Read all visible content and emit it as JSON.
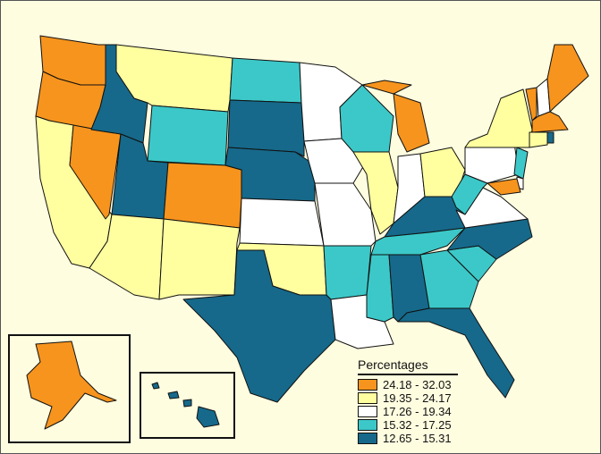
{
  "legend": {
    "title": "Percentages",
    "bins": [
      {
        "label": "24.18 - 32.03",
        "color": "#f7941d"
      },
      {
        "label": "19.35 - 24.17",
        "color": "#ffffa0"
      },
      {
        "label": "17.26 - 19.34",
        "color": "#ffffff"
      },
      {
        "label": "15.32 - 17.25",
        "color": "#3cc8c8"
      },
      {
        "label": "12.65 - 15.31",
        "color": "#16698a"
      }
    ]
  },
  "state_bins": {
    "WA": 0,
    "OR": 0,
    "CA": 1,
    "NV": 0,
    "ID": 4,
    "MT": 1,
    "WY": 3,
    "UT": 4,
    "AZ": 1,
    "CO": 0,
    "NM": 1,
    "ND": 3,
    "SD": 4,
    "NE": 4,
    "KS": 2,
    "OK": 1,
    "TX": 4,
    "MN": 2,
    "IA": 2,
    "MO": 2,
    "AR": 3,
    "LA": 2,
    "WI": 3,
    "IL": 1,
    "MI": 0,
    "IN": 2,
    "OH": 1,
    "KY": 4,
    "TN": 3,
    "MS": 3,
    "AL": 4,
    "GA": 3,
    "FL": 4,
    "SC": 3,
    "NC": 4,
    "VA": 2,
    "WV": 3,
    "PA": 2,
    "NY": 1,
    "VT": 0,
    "NH": 2,
    "ME": 0,
    "MA": 0,
    "CT": 1,
    "RI": 4,
    "NJ": 3,
    "DE": 2,
    "MD": 0,
    "AK": 0,
    "HI": 4
  }
}
